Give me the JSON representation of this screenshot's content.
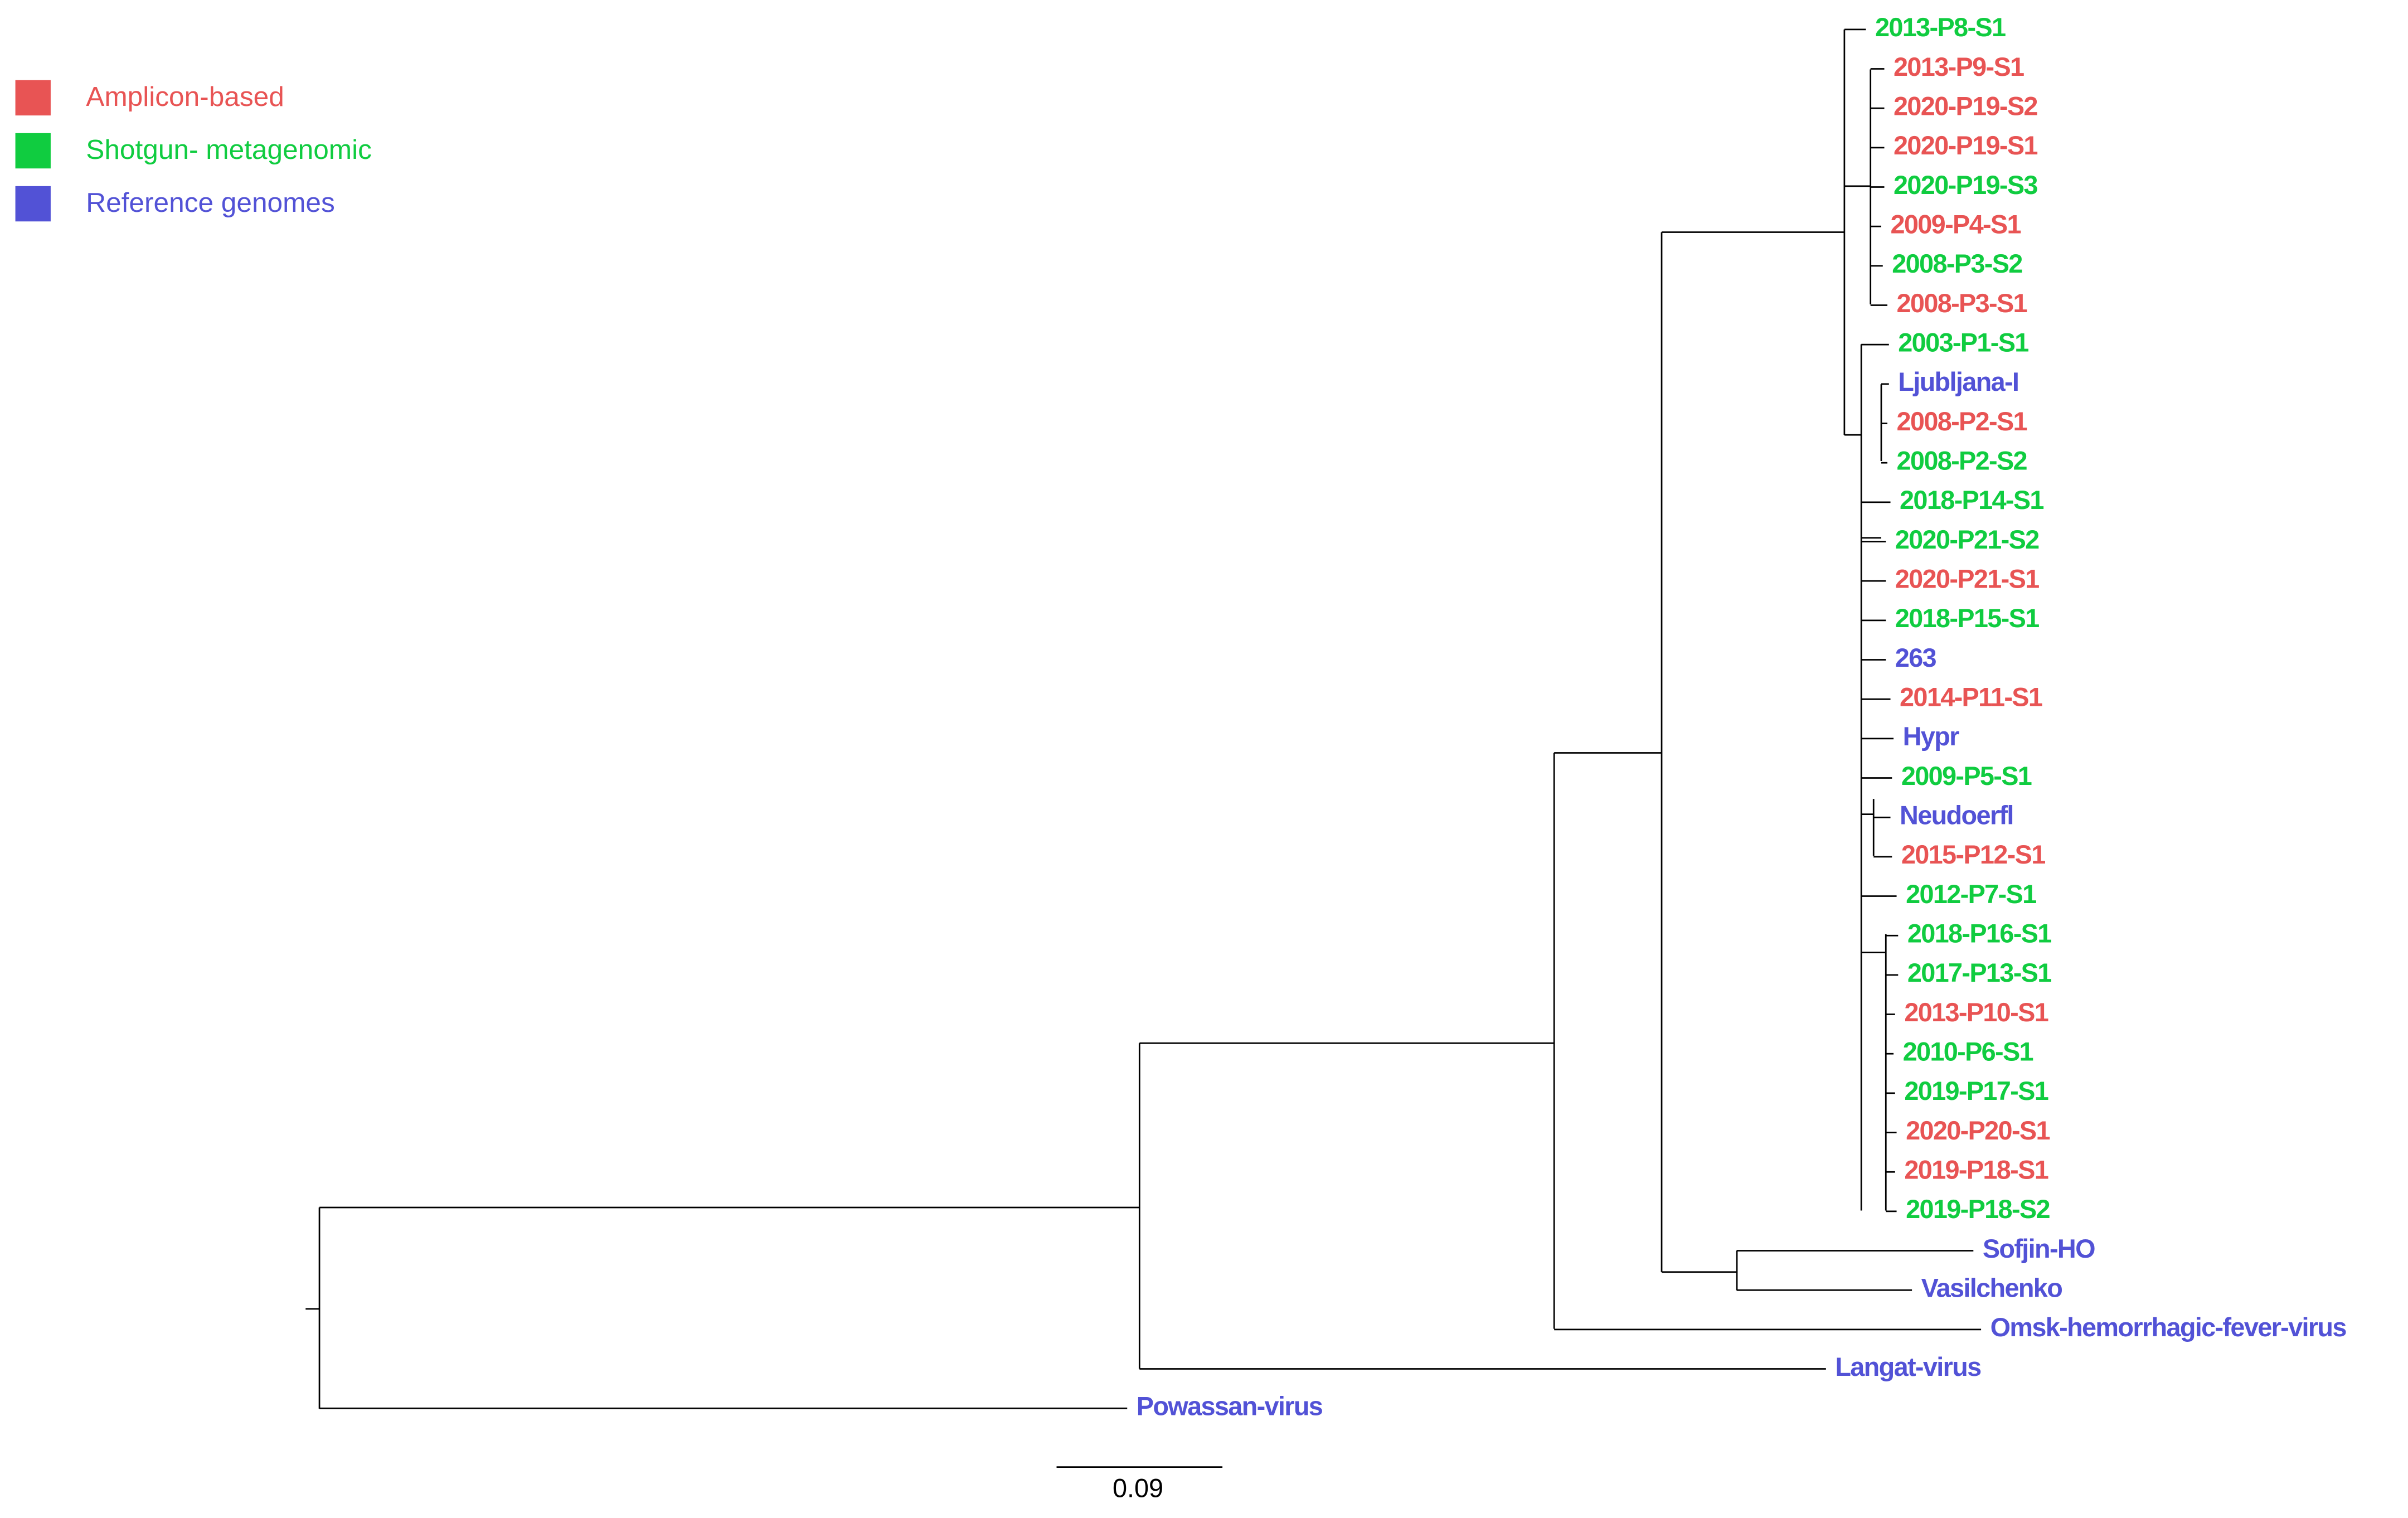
{
  "legend": [
    {
      "label": "Amplicon-based",
      "color": "#e85454"
    },
    {
      "label": "Shotgun- metagenomic",
      "color": "#10cc40"
    },
    {
      "label": "Reference genomes",
      "color": "#5252d6"
    }
  ],
  "leaves": [
    {
      "label": "2013-P8-S1",
      "legend": 1
    },
    {
      "label": "2013-P9-S1",
      "legend": 0
    },
    {
      "label": "2020-P19-S2",
      "legend": 0
    },
    {
      "label": "2020-P19-S1",
      "legend": 0
    },
    {
      "label": "2020-P19-S3",
      "legend": 1
    },
    {
      "label": "2009-P4-S1",
      "legend": 0
    },
    {
      "label": "2008-P3-S2",
      "legend": 1
    },
    {
      "label": "2008-P3-S1",
      "legend": 0
    },
    {
      "label": "2003-P1-S1",
      "legend": 1
    },
    {
      "label": "Ljubljana-I",
      "legend": 2
    },
    {
      "label": "2008-P2-S1",
      "legend": 0
    },
    {
      "label": "2008-P2-S2",
      "legend": 1
    },
    {
      "label": "2018-P14-S1",
      "legend": 1
    },
    {
      "label": "2020-P21-S2",
      "legend": 1
    },
    {
      "label": "2020-P21-S1",
      "legend": 0
    },
    {
      "label": "2018-P15-S1",
      "legend": 1
    },
    {
      "label": "263",
      "legend": 2
    },
    {
      "label": "2014-P11-S1",
      "legend": 0
    },
    {
      "label": "Hypr",
      "legend": 2
    },
    {
      "label": "2009-P5-S1",
      "legend": 1
    },
    {
      "label": "Neudoerfl",
      "legend": 2
    },
    {
      "label": "2015-P12-S1",
      "legend": 0
    },
    {
      "label": "2012-P7-S1",
      "legend": 1
    },
    {
      "label": "2018-P16-S1",
      "legend": 1
    },
    {
      "label": "2017-P13-S1",
      "legend": 1
    },
    {
      "label": "2013-P10-S1",
      "legend": 0
    },
    {
      "label": "2010-P6-S1",
      "legend": 1
    },
    {
      "label": "2019-P17-S1",
      "legend": 1
    },
    {
      "label": "2020-P20-S1",
      "legend": 0
    },
    {
      "label": "2019-P18-S1",
      "legend": 0
    },
    {
      "label": "2019-P18-S2",
      "legend": 1
    },
    {
      "label": "Sofjin-HO",
      "legend": 2
    },
    {
      "label": "Vasilchenko",
      "legend": 2
    },
    {
      "label": "Omsk-hemorrhagic-fever-virus",
      "legend": 2
    },
    {
      "label": "Langat-virus",
      "legend": 2
    },
    {
      "label": "Powassan-virus",
      "legend": 2
    }
  ],
  "scale_bar": "0.09"
}
